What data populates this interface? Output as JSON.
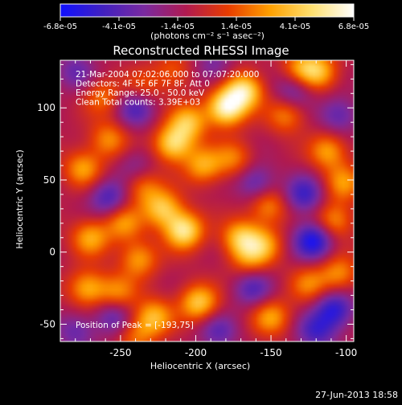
{
  "colorbar": {
    "ticks": [
      "-6.8e-05",
      "-4.1e-05",
      "-1.4e-05",
      "1.4e-05",
      "4.1e-05",
      "6.8e-05"
    ],
    "unit_label": "(photons cm⁻² s⁻¹ asec⁻²)",
    "range": [
      -6.8e-05,
      6.8e-05
    ],
    "colors": [
      "#1010ff",
      "#4020c0",
      "#7a2aa0",
      "#b01a50",
      "#e83c00",
      "#ffa000",
      "#ffe070",
      "#ffffff"
    ]
  },
  "chart_data": {
    "type": "heatmap",
    "title": "Reconstructed RHESSI Image",
    "xlabel": "Heliocentric X (arcsec)",
    "ylabel": "Heliocentric Y (arcsec)",
    "xlim": [
      -290,
      -95
    ],
    "ylim": [
      -62,
      133
    ],
    "xticks": [
      -250,
      -200,
      -150,
      -100
    ],
    "xtick_labels": [
      "-250",
      "-200",
      "-150",
      "-100"
    ],
    "yticks": [
      -50,
      0,
      50,
      100
    ],
    "ytick_labels": [
      "-50",
      "0",
      "50",
      "100"
    ],
    "annotations": [
      "21-Mar-2004 07:02:06.000 to 07:07:20.000",
      "Detectors: 4F 5F 6F 7F 8F, Att 0",
      "Energy Range: 25.0 - 50.0 keV",
      "Clean     Total counts: 3.39E+03"
    ],
    "peak_label": "Position of Peak = [-193,75]",
    "blobs": [
      {
        "x": -180,
        "y": 100,
        "v": 6.8e-05
      },
      {
        "x": -168,
        "y": 112,
        "v": 6e-05
      },
      {
        "x": -205,
        "y": 90,
        "v": 4.5e-05
      },
      {
        "x": -215,
        "y": 75,
        "v": 5.5e-05
      },
      {
        "x": -195,
        "y": 60,
        "v": 4e-05
      },
      {
        "x": -208,
        "y": 15,
        "v": 6.2e-05
      },
      {
        "x": -222,
        "y": 30,
        "v": 4.8e-05
      },
      {
        "x": -235,
        "y": 45,
        "v": 3e-05
      },
      {
        "x": -248,
        "y": 20,
        "v": 3.5e-05
      },
      {
        "x": -270,
        "y": 10,
        "v": 4e-05
      },
      {
        "x": -272,
        "y": -25,
        "v": 4.2e-05
      },
      {
        "x": -252,
        "y": -28,
        "v": 3.2e-05
      },
      {
        "x": -238,
        "y": -5,
        "v": 3.8e-05
      },
      {
        "x": -228,
        "y": -45,
        "v": 4.4e-05
      },
      {
        "x": -198,
        "y": -35,
        "v": 5e-05
      },
      {
        "x": -170,
        "y": 10,
        "v": 4.6e-05
      },
      {
        "x": -155,
        "y": 5,
        "v": 3.6e-05
      },
      {
        "x": -152,
        "y": 32,
        "v": 3.4e-05
      },
      {
        "x": -175,
        "y": 65,
        "v": 3e-05
      },
      {
        "x": -140,
        "y": 95,
        "v": 3.2e-05
      },
      {
        "x": -118,
        "y": 125,
        "v": 4e-05
      },
      {
        "x": -130,
        "y": 128,
        "v": 3.4e-05
      },
      {
        "x": -112,
        "y": 70,
        "v": 3.8e-05
      },
      {
        "x": -102,
        "y": 48,
        "v": 3.4e-05
      },
      {
        "x": -108,
        "y": 22,
        "v": 3.6e-05
      },
      {
        "x": -105,
        "y": -15,
        "v": 3.4e-05
      },
      {
        "x": -125,
        "y": -22,
        "v": 3e-05
      },
      {
        "x": -150,
        "y": -45,
        "v": 3.8e-05
      },
      {
        "x": -258,
        "y": 78,
        "v": 3.4e-05
      },
      {
        "x": -275,
        "y": 58,
        "v": 3.8e-05
      },
      {
        "x": -262,
        "y": 108,
        "v": 2.8e-05
      },
      {
        "x": -235,
        "y": 115,
        "v": 2e-05
      },
      {
        "x": -215,
        "y": 125,
        "v": 2.4e-05
      },
      {
        "x": -165,
        "y": -5,
        "v": 2.6e-05
      },
      {
        "x": -240,
        "y": -58,
        "v": 2.6e-05
      },
      {
        "x": -122,
        "y": 8,
        "v": -5.5e-05
      },
      {
        "x": -128,
        "y": 40,
        "v": -4e-05
      },
      {
        "x": -160,
        "y": 48,
        "v": -3.2e-05
      },
      {
        "x": -258,
        "y": 38,
        "v": -3.6e-05
      },
      {
        "x": -240,
        "y": 100,
        "v": -3.4e-05
      },
      {
        "x": -108,
        "y": -40,
        "v": -4.6e-05
      },
      {
        "x": -120,
        "y": -55,
        "v": -3.6e-05
      },
      {
        "x": -135,
        "y": 112,
        "v": -2.8e-05
      },
      {
        "x": -105,
        "y": 95,
        "v": -3e-05
      },
      {
        "x": -280,
        "y": -55,
        "v": -2.6e-05
      },
      {
        "x": -255,
        "y": -45,
        "v": -3e-05
      },
      {
        "x": -185,
        "y": -55,
        "v": -2.8e-05
      },
      {
        "x": -162,
        "y": -25,
        "v": -3.2e-05
      },
      {
        "x": -280,
        "y": 125,
        "v": -2.6e-05
      },
      {
        "x": -188,
        "y": 128,
        "v": -2.2e-05
      },
      {
        "x": -240,
        "y": 60,
        "v": -1.8e-05
      }
    ]
  },
  "footer": {
    "date": "27-Jun-2013 18:58"
  }
}
